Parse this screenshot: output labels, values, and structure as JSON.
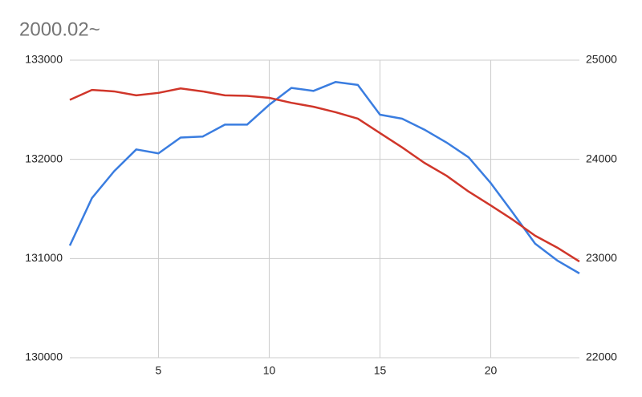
{
  "chart_data": {
    "type": "line",
    "title": "2000.02~",
    "x": [
      1,
      2,
      3,
      4,
      5,
      6,
      7,
      8,
      9,
      10,
      11,
      12,
      13,
      14,
      15,
      16,
      17,
      18,
      19,
      20,
      21,
      22,
      23,
      24
    ],
    "xlim": [
      1,
      24
    ],
    "xticks": [
      5,
      10,
      15,
      20
    ],
    "ylim": [
      130000,
      133000
    ],
    "yticks": [
      130000,
      131000,
      132000,
      133000
    ],
    "y2lim": [
      22000,
      25000
    ],
    "y2ticks": [
      22000,
      23000,
      24000,
      25000
    ],
    "grid": true,
    "series": [
      {
        "color": "#3a7de0",
        "values": [
          131130,
          131610,
          131880,
          132100,
          132060,
          132220,
          132230,
          132350,
          132350,
          132550,
          132720,
          132690,
          132780,
          132750,
          132450,
          132410,
          132300,
          132170,
          132020,
          131760,
          131460,
          131150,
          130980,
          130850
        ]
      },
      {
        "color": "#d0362a",
        "axis": "y2",
        "values": [
          24600,
          24700,
          24685,
          24645,
          24670,
          24715,
          24685,
          24645,
          24640,
          24620,
          24570,
          24530,
          24475,
          24410,
          24265,
          24120,
          23965,
          23835,
          23675,
          23535,
          23390,
          23230,
          23110,
          22970
        ]
      }
    ]
  }
}
